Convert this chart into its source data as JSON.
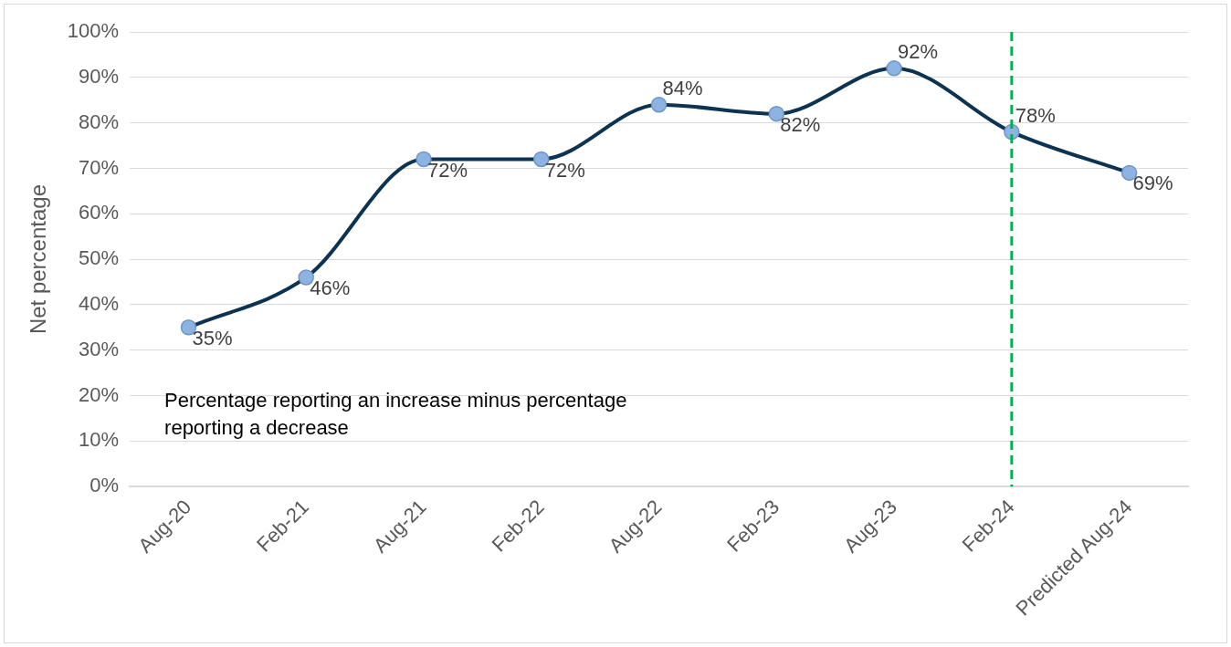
{
  "chart_data": {
    "type": "line",
    "categories": [
      "Aug-20",
      "Feb-21",
      "Aug-21",
      "Feb-22",
      "Aug-22",
      "Feb-23",
      "Aug-23",
      "Feb-24",
      "Predicted Aug-24"
    ],
    "series": [
      {
        "color": "#0d3352",
        "values": [
          35,
          46,
          72,
          72,
          84,
          82,
          92,
          78,
          69
        ]
      }
    ],
    "ylabel": "Net percentage",
    "ylim": [
      0,
      100
    ],
    "yticks": [
      {
        "value": 0,
        "label": "0%"
      },
      {
        "value": 10,
        "label": "10%"
      },
      {
        "value": 20,
        "label": "20%"
      },
      {
        "value": 30,
        "label": "30%"
      },
      {
        "value": 40,
        "label": "40%"
      },
      {
        "value": 50,
        "label": "50%"
      },
      {
        "value": 60,
        "label": "60%"
      },
      {
        "value": 70,
        "label": "70%"
      },
      {
        "value": 80,
        "label": "80%"
      },
      {
        "value": 90,
        "label": "90%"
      },
      {
        "value": 100,
        "label": "100%"
      }
    ],
    "value_labels": [
      "35%",
      "46%",
      "72%",
      "72%",
      "84%",
      "82%",
      "92%",
      "78%",
      "69%"
    ],
    "ref_lines": [
      {
        "axis": "x",
        "value": "Feb-24",
        "color": "#00b050",
        "line_style": "dashed"
      }
    ],
    "annotations": [
      "Percentage reporting an increase minus percentage reporting a decrease"
    ],
    "grid": "y",
    "legend": false,
    "marker": "circle",
    "line_style": "solid"
  }
}
